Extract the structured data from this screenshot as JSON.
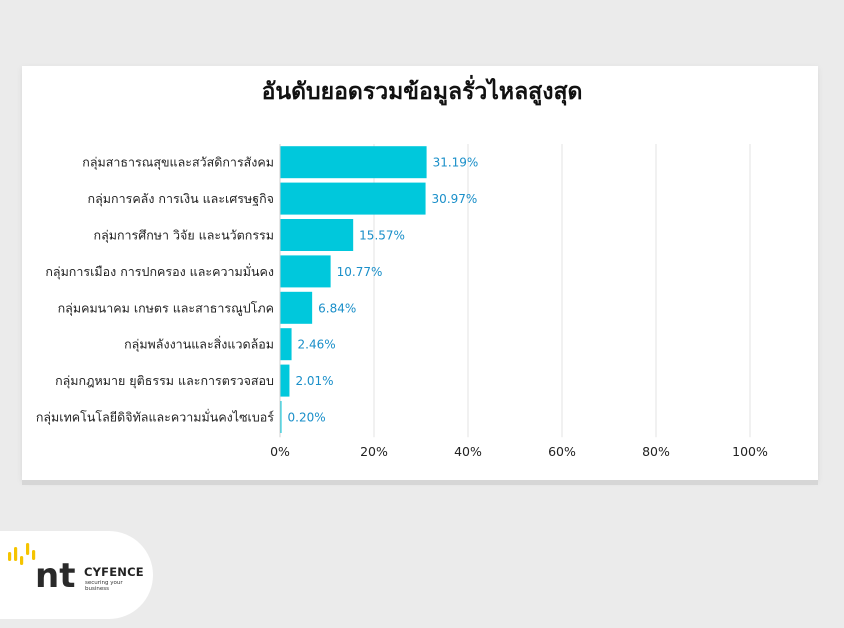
{
  "chart_data": {
    "type": "bar",
    "orientation": "horizontal",
    "title": "อันดับยอดรวมข้อมูลรั่วไหลสูงสุด",
    "categories": [
      "กลุ่มสาธารณสุขและสวัสดิการสังคม",
      "กลุ่มการคลัง การเงิน และเศรษฐกิจ",
      "กลุ่มการศึกษา วิจัย และนวัตกรรม",
      "กลุ่มการเมือง การปกครอง และความมั่นคง",
      "กลุ่มคมนาคม เกษตร และสาธารณูปโภค",
      "กลุ่มพลังงานและสิ่งแวดล้อม",
      "กลุ่มกฎหมาย ยุติธรรม และการตรวจสอบ",
      "กลุ่มเทคโนโลยีดิจิทัลและความมั่นคงไซเบอร์"
    ],
    "values": [
      31.19,
      30.97,
      15.57,
      10.77,
      6.84,
      2.46,
      2.01,
      0.2
    ],
    "data_labels": [
      "31.19%",
      "30.97%",
      "15.57%",
      "10.77%",
      "6.84%",
      "2.46%",
      "2.01%",
      "0.20%"
    ],
    "xlim": [
      0,
      100
    ],
    "x_ticks": [
      "0%",
      "20%",
      "40%",
      "60%",
      "80%",
      "100%"
    ],
    "grid": true,
    "legend": "none",
    "bar_color": "#00c8dc",
    "label_color": "#1a8fc9"
  },
  "logo": {
    "name": "CYFENCE",
    "tagline": "securing your business",
    "mark_text": "nt",
    "accent_color": "#f5c400"
  }
}
